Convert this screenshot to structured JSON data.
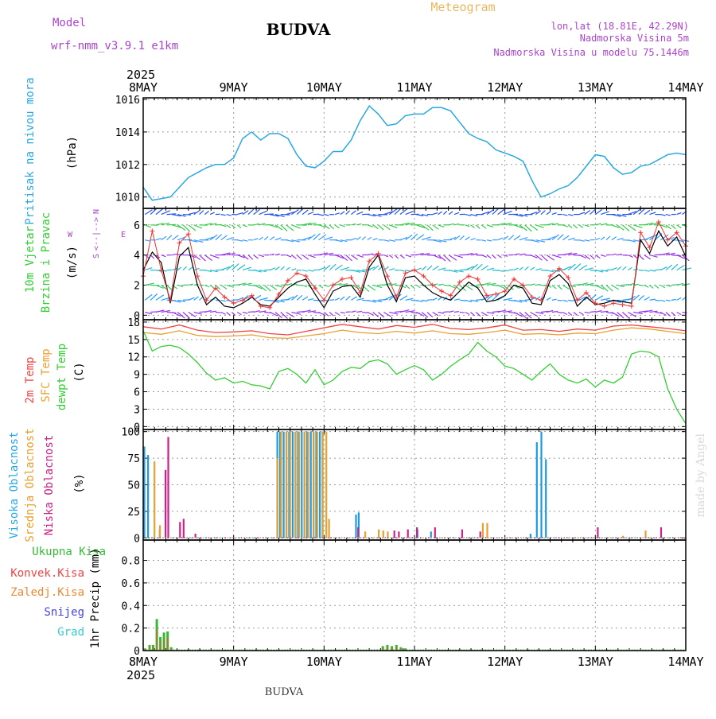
{
  "header": {
    "location_title": "BUDVA",
    "meteogram_label": "Meteogram",
    "model_label": "Model",
    "model_name": "wrf-nmm_v3.9.1 e1km",
    "coords": "lon,lat (18.81E, 42.29N)",
    "altitude": "Nadmorska Visina 5m",
    "model_altitude": "Nadmorska Visina u modelu 75.1446m",
    "footer_title": "BUDVA",
    "watermark": "made by Angel",
    "year_top": "2025",
    "year_bottom": "2025"
  },
  "time_axis": {
    "labels": [
      "8MAY",
      "9MAY",
      "10MAY",
      "11MAY",
      "12MAY",
      "13MAY",
      "14MAY"
    ],
    "days": 6
  },
  "colors": {
    "pressure": "#2aa8e0",
    "temp2m": "#ee4444",
    "sfc": "#e8a030",
    "dew": "#33cc33",
    "wind_speed": "#000000",
    "wind_dir": "#ee3333",
    "high_cloud": "#1e9be0",
    "mid_cloud": "#e8a030",
    "low_cloud": "#cc2288",
    "precip_total": "#33bb33",
    "precip_conv": "#ee4444",
    "precip_frz": "#ee8833",
    "snow": "#4444dd",
    "hail": "#33cccc",
    "ylabel_purple": "#aa44cc"
  },
  "chart_data": [
    {
      "id": "pressure",
      "type": "line",
      "ylabel": "Pritisak na nivou mora",
      "units": "(hPa)",
      "ylim": [
        1009.3,
        1016.1
      ],
      "yticks": [
        1010,
        1012,
        1014,
        1016
      ],
      "series": [
        {
          "x": [
            0,
            0.1,
            0.3,
            0.5,
            0.7,
            0.8,
            0.9,
            1.0,
            1.1,
            1.2,
            1.3,
            1.4,
            1.5,
            1.6,
            1.7,
            1.8,
            1.9,
            2.0,
            2.1,
            2.2,
            2.3,
            2.4,
            2.5,
            2.6,
            2.7,
            2.8,
            2.9,
            3.0,
            3.1,
            3.2,
            3.3,
            3.4,
            3.5,
            3.6,
            3.7,
            3.8,
            3.9,
            4.0,
            4.1,
            4.2,
            4.3,
            4.4,
            4.5,
            4.6,
            4.7,
            4.8,
            4.9,
            5.0,
            5.1,
            5.2,
            5.3,
            5.4,
            5.5,
            5.6,
            5.7,
            5.8,
            5.9,
            6.0
          ],
          "values": [
            1010.6,
            1009.8,
            1010.0,
            1011.2,
            1011.8,
            1012.0,
            1012.0,
            1012.4,
            1013.6,
            1014.0,
            1013.5,
            1013.9,
            1013.9,
            1013.6,
            1012.6,
            1011.9,
            1011.8,
            1012.2,
            1012.8,
            1012.8,
            1013.5,
            1014.7,
            1015.6,
            1015.1,
            1014.4,
            1014.5,
            1015.0,
            1015.1,
            1015.1,
            1015.5,
            1015.5,
            1015.3,
            1014.6,
            1013.9,
            1013.6,
            1013.4,
            1012.9,
            1012.7,
            1012.5,
            1012.2,
            1011.0,
            1010.0,
            1010.2,
            1010.5,
            1010.7,
            1011.2,
            1011.9,
            1012.6,
            1012.5,
            1011.8,
            1011.4,
            1011.5,
            1011.9,
            1012.0,
            1012.3,
            1012.6,
            1012.7,
            1012.6
          ]
        }
      ]
    },
    {
      "id": "wind",
      "type": "line",
      "ylabel_1": "10m Vjetar",
      "ylabel_2": "Brzina i Pravac",
      "units": "(m/s)",
      "ylim": [
        -0.3,
        7.1
      ],
      "yticks": [
        0,
        2,
        4,
        6
      ],
      "compass": [
        "N",
        "W",
        "<--|-->",
        "E",
        "S"
      ],
      "series": [
        {
          "name": "speed",
          "x": [
            0,
            0.1,
            0.2,
            0.3,
            0.4,
            0.5,
            0.6,
            0.7,
            0.8,
            0.9,
            1.0,
            1.1,
            1.2,
            1.3,
            1.4,
            1.5,
            1.6,
            1.7,
            1.8,
            1.9,
            2.0,
            2.1,
            2.2,
            2.3,
            2.4,
            2.5,
            2.6,
            2.7,
            2.8,
            2.9,
            3.0,
            3.1,
            3.2,
            3.3,
            3.4,
            3.5,
            3.6,
            3.7,
            3.8,
            3.9,
            4.0,
            4.1,
            4.2,
            4.3,
            4.4,
            4.5,
            4.6,
            4.7,
            4.8,
            4.9,
            5.0,
            5.1,
            5.2,
            5.3,
            5.4,
            5.5,
            5.6,
            5.7,
            5.8,
            5.9,
            6.0
          ],
          "values": [
            3.0,
            4.2,
            3.5,
            0.8,
            3.9,
            4.5,
            2.0,
            0.7,
            1.2,
            0.6,
            0.5,
            0.8,
            1.2,
            0.7,
            0.6,
            1.2,
            1.8,
            2.2,
            2.4,
            1.4,
            0.5,
            1.6,
            1.9,
            2.0,
            1.2,
            3.2,
            4.0,
            2.0,
            0.9,
            2.5,
            2.6,
            2.0,
            1.5,
            1.2,
            1.0,
            1.6,
            2.2,
            1.8,
            0.9,
            1.0,
            1.3,
            2.0,
            1.8,
            0.8,
            0.7,
            2.3,
            2.7,
            2.1,
            0.6,
            1.2,
            0.7,
            0.8,
            1.0,
            0.9,
            0.8,
            5.0,
            4.1,
            5.6,
            4.6,
            5.2,
            3.9
          ]
        },
        {
          "name": "direction",
          "x": [
            0,
            0.1,
            0.2,
            0.3,
            0.4,
            0.5,
            0.6,
            0.7,
            0.8,
            0.9,
            1.0,
            1.1,
            1.2,
            1.3,
            1.4,
            1.5,
            1.6,
            1.7,
            1.8,
            1.9,
            2.0,
            2.1,
            2.2,
            2.3,
            2.4,
            2.5,
            2.6,
            2.7,
            2.8,
            2.9,
            3.0,
            3.1,
            3.2,
            3.3,
            3.4,
            3.5,
            3.6,
            3.7,
            3.8,
            3.9,
            4.0,
            4.1,
            4.2,
            4.3,
            4.4,
            4.5,
            4.6,
            4.7,
            4.8,
            4.9,
            5.0,
            5.1,
            5.2,
            5.3,
            5.4,
            5.5,
            5.6,
            5.7,
            5.8,
            5.9,
            6.0
          ],
          "values": [
            2.6,
            5.6,
            3.0,
            1.0,
            4.8,
            5.4,
            2.6,
            1.0,
            1.8,
            1.2,
            0.8,
            1.0,
            1.3,
            0.6,
            0.5,
            1.4,
            2.3,
            2.8,
            2.6,
            1.8,
            1.0,
            2.0,
            2.4,
            2.5,
            1.5,
            3.6,
            4.1,
            2.6,
            1.2,
            2.8,
            3.0,
            2.6,
            2.0,
            1.6,
            1.3,
            2.2,
            2.6,
            2.4,
            1.3,
            1.4,
            1.6,
            2.4,
            2.0,
            1.2,
            1.0,
            2.6,
            3.1,
            2.5,
            1.0,
            1.5,
            0.8,
            0.6,
            0.8,
            0.7,
            0.6,
            5.5,
            4.5,
            6.2,
            5.0,
            5.5,
            4.6
          ]
        }
      ]
    },
    {
      "id": "temperature",
      "type": "line",
      "ylabel_2m": "2m Temp",
      "ylabel_sfc": "SFC Temp",
      "ylabel_dew": "dewpt Temp",
      "units": "(C)",
      "ylim": [
        -0.5,
        18.4
      ],
      "yticks": [
        0,
        3,
        6,
        9,
        12,
        15,
        18
      ],
      "series": [
        {
          "name": "2m",
          "x": [
            0,
            0.2,
            0.4,
            0.6,
            0.8,
            1.0,
            1.2,
            1.4,
            1.6,
            1.8,
            2.0,
            2.2,
            2.4,
            2.6,
            2.8,
            3.0,
            3.2,
            3.4,
            3.6,
            3.8,
            4.0,
            4.2,
            4.4,
            4.6,
            4.8,
            5.0,
            5.2,
            5.4,
            5.6,
            5.8,
            6.0
          ],
          "values": [
            17.2,
            16.8,
            17.5,
            16.6,
            16.2,
            16.3,
            16.5,
            16.0,
            15.8,
            16.4,
            17.0,
            17.6,
            17.2,
            16.8,
            17.4,
            17.1,
            17.6,
            16.9,
            16.7,
            17.0,
            17.5,
            16.6,
            16.7,
            16.4,
            16.8,
            16.6,
            17.3,
            17.5,
            17.2,
            16.9,
            16.5
          ]
        },
        {
          "name": "sfc",
          "x": [
            0,
            0.2,
            0.4,
            0.6,
            0.8,
            1.0,
            1.2,
            1.4,
            1.6,
            1.8,
            2.0,
            2.2,
            2.4,
            2.6,
            2.8,
            3.0,
            3.2,
            3.4,
            3.6,
            3.8,
            4.0,
            4.2,
            4.4,
            4.6,
            4.8,
            5.0,
            5.2,
            5.4,
            5.6,
            5.8,
            6.0
          ],
          "values": [
            16.2,
            15.9,
            16.5,
            15.7,
            15.5,
            15.6,
            15.8,
            15.3,
            15.2,
            15.6,
            16.0,
            16.6,
            16.2,
            16.0,
            16.4,
            16.1,
            16.5,
            16.0,
            15.9,
            16.2,
            16.6,
            15.9,
            16.0,
            15.8,
            16.1,
            16.0,
            16.6,
            17.0,
            16.8,
            16.4,
            16.0
          ]
        },
        {
          "name": "dew",
          "x": [
            0,
            0.1,
            0.2,
            0.3,
            0.4,
            0.5,
            0.6,
            0.7,
            0.8,
            0.9,
            1.0,
            1.1,
            1.2,
            1.3,
            1.4,
            1.5,
            1.6,
            1.7,
            1.8,
            1.9,
            2.0,
            2.1,
            2.2,
            2.3,
            2.4,
            2.5,
            2.6,
            2.7,
            2.8,
            2.9,
            3.0,
            3.1,
            3.2,
            3.3,
            3.4,
            3.5,
            3.6,
            3.7,
            3.8,
            3.9,
            4.0,
            4.1,
            4.2,
            4.3,
            4.4,
            4.5,
            4.6,
            4.7,
            4.8,
            4.9,
            5.0,
            5.1,
            5.2,
            5.3,
            5.4,
            5.5,
            5.6,
            5.7,
            5.8,
            5.9,
            6.0
          ],
          "values": [
            16.5,
            13.0,
            13.8,
            14.0,
            13.6,
            12.5,
            11.0,
            9.2,
            8.0,
            8.4,
            7.5,
            7.8,
            7.2,
            7.0,
            6.5,
            9.5,
            10.0,
            9.0,
            7.5,
            9.8,
            7.2,
            8.0,
            9.5,
            10.2,
            10.0,
            11.2,
            11.5,
            10.8,
            9.0,
            9.8,
            10.5,
            9.8,
            8.0,
            9.0,
            10.4,
            11.5,
            12.5,
            14.5,
            13.0,
            12.0,
            10.4,
            10.0,
            9.0,
            8.0,
            9.5,
            10.8,
            9.0,
            8.0,
            7.5,
            8.2,
            6.8,
            8.0,
            7.5,
            8.5,
            12.5,
            13.0,
            12.8,
            12.0,
            6.5,
            3.0,
            0.5
          ]
        }
      ]
    },
    {
      "id": "clouds",
      "type": "bar",
      "ylabel_high": "Visoka Oblacnost",
      "ylabel_mid": "Srednja Oblacnost",
      "ylabel_low": "Niska Oblacnost",
      "units": "(%)",
      "ylim": [
        -2,
        102
      ],
      "yticks": [
        0,
        25,
        50,
        75,
        100
      ],
      "series": [
        {
          "name": "high",
          "x": [
            0.03,
            0.07,
            0.2,
            1.5,
            1.53,
            1.57,
            1.6,
            1.63,
            1.67,
            1.7,
            1.73,
            1.77,
            1.8,
            1.83,
            1.87,
            1.9,
            1.93,
            1.97,
            2.0,
            2.37,
            2.4,
            3.05,
            3.2,
            4.3,
            4.37,
            4.42,
            4.47
          ],
          "values": [
            86,
            78,
            8,
            100,
            100,
            100,
            100,
            100,
            100,
            100,
            100,
            100,
            100,
            100,
            100,
            100,
            100,
            100,
            100,
            22,
            24,
            8,
            6,
            4,
            90,
            100,
            74
          ]
        },
        {
          "name": "mid",
          "x": [
            0.12,
            0.18,
            1.48,
            1.52,
            1.58,
            1.62,
            1.68,
            1.72,
            1.78,
            1.82,
            1.88,
            1.92,
            1.98,
            2.02,
            2.05,
            2.45,
            2.6,
            2.65,
            2.7,
            3.75,
            3.8,
            5.3,
            5.55
          ],
          "values": [
            72,
            12,
            75,
            100,
            100,
            100,
            100,
            100,
            100,
            100,
            100,
            100,
            100,
            100,
            18,
            6,
            8,
            7,
            6,
            14,
            14,
            2,
            7
          ]
        },
        {
          "name": "low",
          "x": [
            0.22,
            0.25,
            0.38,
            0.42,
            0.55,
            2.35,
            2.75,
            2.8,
            2.9,
            3.0,
            3.2,
            3.5,
            3.7,
            5.0,
            5.7
          ],
          "values": [
            64,
            95,
            15,
            18,
            4,
            10,
            7,
            6,
            8,
            10,
            10,
            8,
            6,
            10,
            10
          ]
        }
      ]
    },
    {
      "id": "precip",
      "type": "bar",
      "ylabel_total": "Ukupna Kisa",
      "ylabel_conv": "Konvek.Kisa",
      "ylabel_frz": "Zaledj.Kisa",
      "ylabel_snow": "Snijeg",
      "ylabel_hail": "Grad",
      "units": "1hr Precip (mm)",
      "ylim": [
        0,
        0.98
      ],
      "yticks": [
        0,
        0.2,
        0.4,
        0.6,
        0.8
      ],
      "series": [
        {
          "name": "total",
          "x": [
            0.02,
            0.07,
            0.11,
            0.15,
            0.19,
            0.23,
            0.27,
            0.31,
            2.65,
            2.7,
            2.75,
            2.8,
            2.85,
            2.9
          ],
          "values": [
            0.02,
            0.05,
            0.05,
            0.28,
            0.12,
            0.16,
            0.17,
            0.03,
            0.04,
            0.05,
            0.04,
            0.05,
            0.03,
            0.02
          ]
        }
      ]
    }
  ]
}
